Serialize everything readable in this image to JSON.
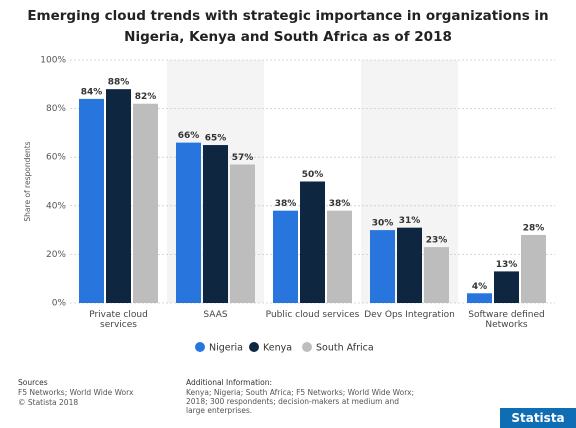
{
  "chart_data": {
    "type": "bar",
    "title": "Emerging cloud trends with strategic importance in organizations in Nigeria, Kenya and South Africa as of 2018",
    "y_label": "Share of respondents",
    "categories": [
      "Private cloud services",
      "SAAS",
      "Public cloud services",
      "Dev Ops Integration",
      "Software defined Networks"
    ],
    "series": [
      {
        "name": "Nigeria",
        "color": "#2876dd",
        "values": [
          84,
          66,
          38,
          30,
          4
        ],
        "value_labels": [
          "84%",
          "66%",
          "38%",
          "30%",
          "4%"
        ]
      },
      {
        "name": "Kenya",
        "color": "#0f2640",
        "values": [
          88,
          65,
          50,
          31,
          13
        ],
        "value_labels": [
          "88%",
          "65%",
          "50%",
          "31%",
          "13%"
        ]
      },
      {
        "name": "South Africa",
        "color": "#bdbdbd",
        "values": [
          82,
          57,
          38,
          23,
          28
        ],
        "value_labels": [
          "82%",
          "57%",
          "38%",
          "23%",
          "28%"
        ]
      }
    ],
    "ylim": [
      0,
      100
    ],
    "yticks": [
      {
        "value": 0,
        "label": "0%"
      },
      {
        "value": 20,
        "label": "20%"
      },
      {
        "value": 40,
        "label": "40%"
      },
      {
        "value": 60,
        "label": "60%"
      },
      {
        "value": 80,
        "label": "80%"
      },
      {
        "value": 100,
        "label": "100%"
      }
    ],
    "grid": true
  },
  "footer": {
    "sources_title": "Sources",
    "sources": "F5 Networks; World Wide Worx",
    "copyright": "© Statista 2018",
    "info_title": "Additional Information:",
    "info": "Kenya; Nigeria; South Africa; F5 Networks; World Wide Worx; 2018; 300 respondents; decision-makers at medium and large enterprises.",
    "logo": "Statista"
  }
}
